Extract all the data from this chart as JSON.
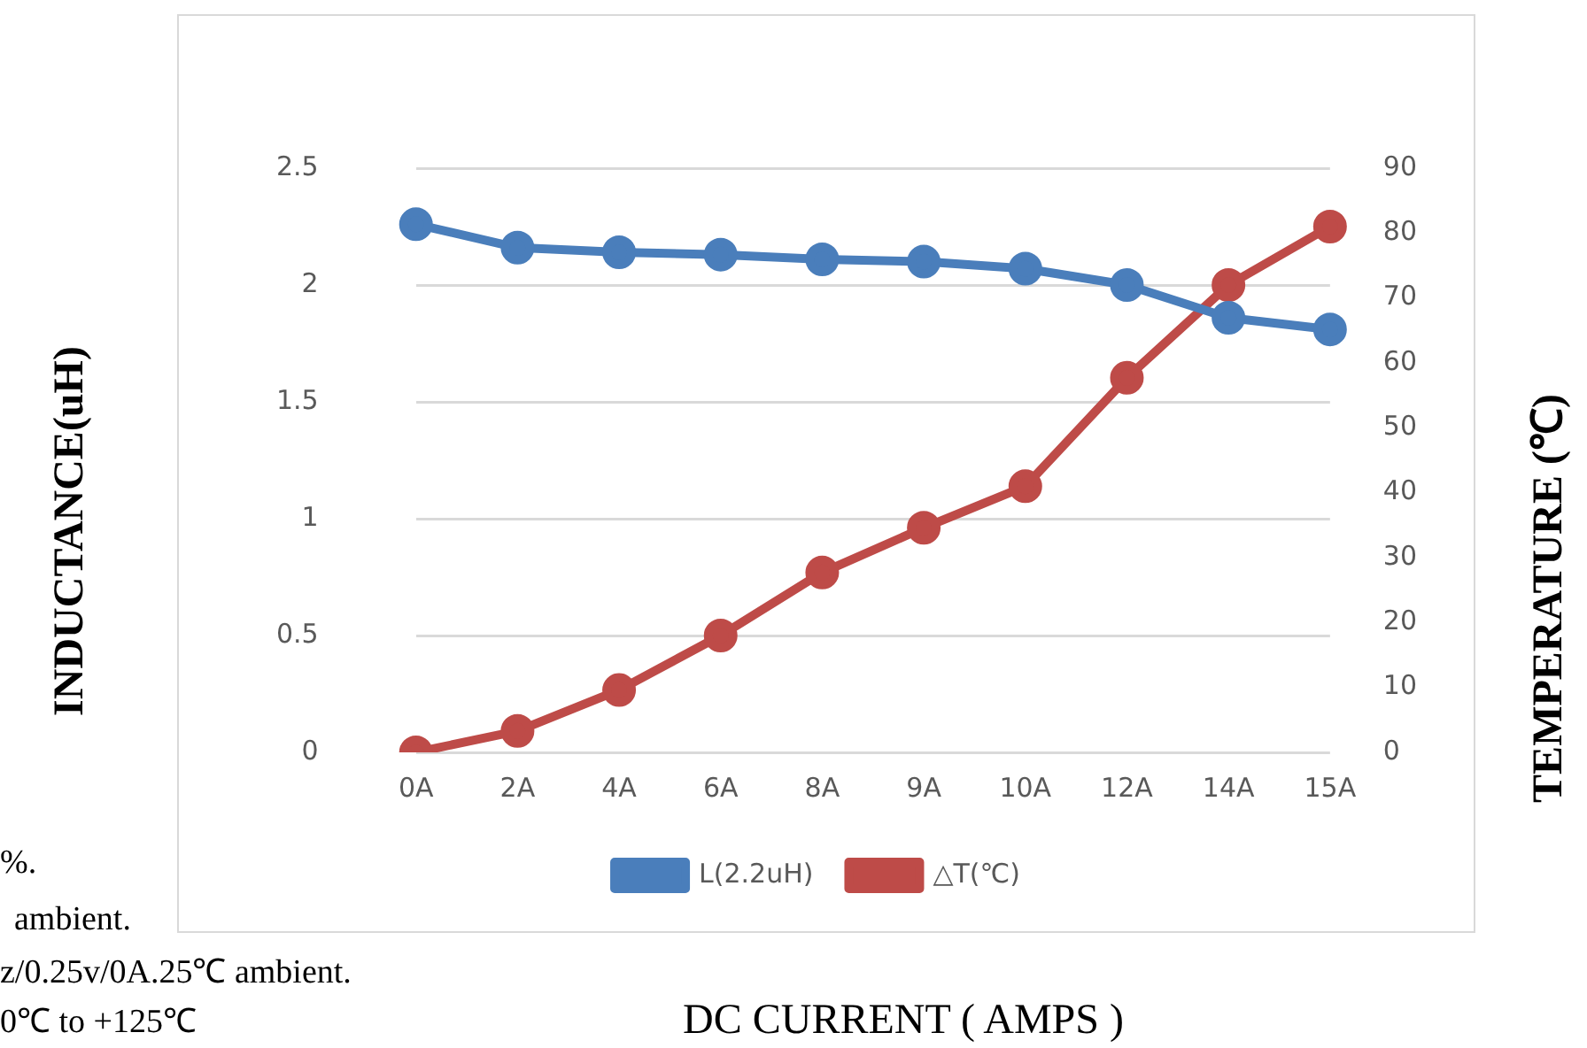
{
  "chart_data": {
    "type": "line",
    "ylabel": "INDUCTANCE(uH)",
    "y2label": "TEMPERATURE (℃)",
    "xlabel": "DC CURRENT ( AMPS )",
    "categories": [
      "0A",
      "2A",
      "4A",
      "6A",
      "8A",
      "9A",
      "10A",
      "12A",
      "14A",
      "15A"
    ],
    "series": [
      {
        "name": "L(2.2uH)",
        "color": "#4a7ebb",
        "values": [
          2.26,
          2.16,
          2.14,
          2.13,
          2.11,
          2.1,
          2.07,
          2.0,
          1.86,
          1.81
        ]
      },
      {
        "name": "△T(℃)",
        "color": "#be4b48",
        "axis": "y2",
        "values": [
          0,
          3.3,
          9.6,
          18,
          27.7,
          34.6,
          41,
          57.7,
          72,
          81
        ]
      }
    ],
    "ylim": [
      0,
      2.5
    ],
    "yticks": [
      0,
      0.5,
      1,
      1.5,
      2,
      2.5
    ],
    "y2lim": [
      0,
      90
    ],
    "y2ticks": [
      0,
      10,
      20,
      30,
      40,
      50,
      60,
      70,
      80,
      90
    ],
    "grid": "y",
    "legend": "bottom",
    "marker": "circle",
    "line_style": "solid",
    "annotations": [
      "%.",
      "ambient.",
      "z/0.25v/0A.25℃ ambient.",
      "0℃ to +125℃"
    ]
  }
}
